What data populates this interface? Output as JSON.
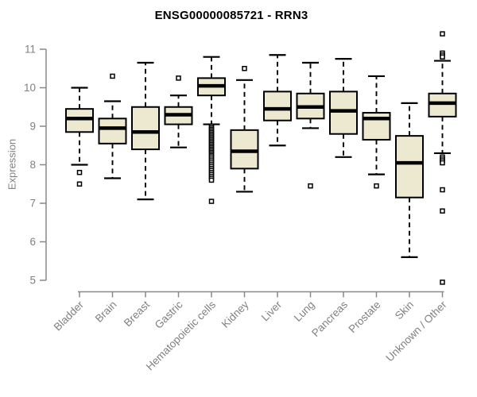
{
  "chart_data": {
    "type": "boxplot",
    "title": "ENSG00000085721 - RRN3",
    "ylabel": "Expression",
    "xlabel": "",
    "y_axis": {
      "min": 5,
      "max": 11,
      "ticks": [
        5,
        6,
        7,
        8,
        9,
        10,
        11
      ]
    },
    "grid": false,
    "categories": [
      "Bladder",
      "Brain",
      "Breast",
      "Gastric",
      "Hematopoietic cells",
      "Kidney",
      "Liver",
      "Lung",
      "Pancreas",
      "Prostate",
      "Skin",
      "Unknown / Other"
    ],
    "series": [
      {
        "name": "Bladder",
        "whisker_low": 8.0,
        "q1": 8.85,
        "median": 9.2,
        "q3": 9.45,
        "whisker_high": 10.0,
        "outliers": [
          7.8,
          7.5
        ]
      },
      {
        "name": "Brain",
        "whisker_low": 7.65,
        "q1": 8.55,
        "median": 8.95,
        "q3": 9.2,
        "whisker_high": 9.65,
        "outliers": [
          10.3
        ]
      },
      {
        "name": "Breast",
        "whisker_low": 7.1,
        "q1": 8.4,
        "median": 8.85,
        "q3": 9.5,
        "whisker_high": 10.65,
        "outliers": []
      },
      {
        "name": "Gastric",
        "whisker_low": 8.45,
        "q1": 9.05,
        "median": 9.3,
        "q3": 9.5,
        "whisker_high": 9.8,
        "outliers": [
          10.25
        ]
      },
      {
        "name": "Hematopoietic cells",
        "whisker_low": 9.05,
        "q1": 9.8,
        "median": 10.05,
        "q3": 10.25,
        "whisker_high": 10.8,
        "outliers": [
          9.0,
          8.96,
          8.92,
          8.88,
          8.84,
          8.8,
          8.76,
          8.72,
          8.68,
          8.64,
          8.6,
          8.56,
          8.52,
          8.48,
          8.44,
          8.4,
          8.36,
          8.32,
          8.28,
          8.24,
          8.2,
          8.15,
          8.1,
          8.05,
          8.0,
          7.95,
          7.9,
          7.85,
          7.8,
          7.75,
          7.7,
          7.65,
          7.6,
          7.05
        ]
      },
      {
        "name": "Kidney",
        "whisker_low": 7.3,
        "q1": 7.9,
        "median": 8.35,
        "q3": 8.9,
        "whisker_high": 10.2,
        "outliers": [
          10.5
        ]
      },
      {
        "name": "Liver",
        "whisker_low": 8.5,
        "q1": 9.15,
        "median": 9.45,
        "q3": 9.9,
        "whisker_high": 10.85,
        "outliers": []
      },
      {
        "name": "Lung",
        "whisker_low": 8.95,
        "q1": 9.2,
        "median": 9.5,
        "q3": 9.85,
        "whisker_high": 10.65,
        "outliers": [
          7.45
        ]
      },
      {
        "name": "Pancreas",
        "whisker_low": 8.2,
        "q1": 8.8,
        "median": 9.4,
        "q3": 9.9,
        "whisker_high": 10.75,
        "outliers": []
      },
      {
        "name": "Prostate",
        "whisker_low": 7.75,
        "q1": 8.65,
        "median": 9.2,
        "q3": 9.35,
        "whisker_high": 10.3,
        "outliers": [
          7.45
        ]
      },
      {
        "name": "Skin",
        "whisker_low": 5.6,
        "q1": 7.15,
        "median": 8.05,
        "q3": 8.75,
        "whisker_high": 9.6,
        "outliers": []
      },
      {
        "name": "Unknown / Other",
        "whisker_low": 8.3,
        "q1": 9.25,
        "median": 9.6,
        "q3": 9.85,
        "whisker_high": 10.7,
        "outliers": [
          11.4,
          10.9,
          10.85,
          10.8,
          8.2,
          8.15,
          8.1,
          8.05,
          7.35,
          6.8,
          4.95
        ]
      }
    ],
    "colors": {
      "box_fill": "#EDE8D0",
      "box_stroke": "#000000",
      "median": "#000000",
      "whisker": "#000000",
      "axis": "#898989",
      "tick_label": "#808080",
      "title": "#000000"
    }
  }
}
